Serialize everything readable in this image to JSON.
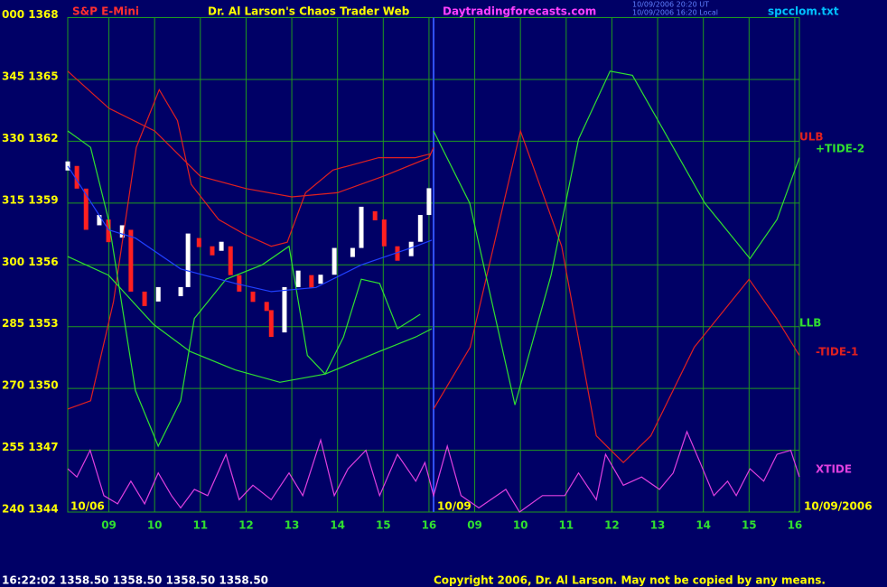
{
  "chart_data": {
    "type": "line",
    "title": "S&P E-Mini",
    "subtitle": "Dr. Al Larson's Chaos Trader Web",
    "website": "Daytradingforecasts.com",
    "timestamps": [
      "10/09/2006 20:20 UT",
      "10/09/2006 16:20 Local"
    ],
    "file": "spcclom.txt",
    "status": "16:22:02  1358.50 1358.50 1358.50 1358.50",
    "copyright": "Copyright 2006, Dr. Al Larson. May not be copied by any means.",
    "date_labels": [
      "10/06",
      "10/09",
      "10/09/2006"
    ],
    "grid": true,
    "ylim": [
      1344,
      1368
    ],
    "yticks": [
      {
        "value": 1368,
        "label": "000 1368"
      },
      {
        "value": 1365,
        "label": "345 1365"
      },
      {
        "value": 1362,
        "label": "330 1362"
      },
      {
        "value": 1359,
        "label": "315 1359"
      },
      {
        "value": 1356,
        "label": "300 1356"
      },
      {
        "value": 1353,
        "label": "285 1353"
      },
      {
        "value": 1350,
        "label": "270 1350"
      },
      {
        "value": 1347,
        "label": "255 1347"
      },
      {
        "value": 1344,
        "label": "240 1344"
      }
    ],
    "xlim": [
      0.1,
      16.1
    ],
    "xticks": [
      {
        "value": 1,
        "label": "09"
      },
      {
        "value": 2,
        "label": "10"
      },
      {
        "value": 3,
        "label": "11"
      },
      {
        "value": 4,
        "label": "12"
      },
      {
        "value": 5,
        "label": "13"
      },
      {
        "value": 6,
        "label": "14"
      },
      {
        "value": 7,
        "label": "15"
      },
      {
        "value": 8,
        "label": "16"
      },
      {
        "value": 9,
        "label": "09"
      },
      {
        "value": 10,
        "label": "10"
      },
      {
        "value": 11,
        "label": "11"
      },
      {
        "value": 12,
        "label": "12"
      },
      {
        "value": 13,
        "label": "13"
      },
      {
        "value": 14,
        "label": "14"
      },
      {
        "value": 15,
        "label": "15"
      },
      {
        "value": 16,
        "label": "16"
      }
    ],
    "session_break": 8.1,
    "series": [
      {
        "style": "bars",
        "color": "#ffffff",
        "down_color": "#ff2020",
        "x": [
          0.1,
          0.3,
          0.5,
          0.79,
          0.99,
          1.29,
          1.48,
          1.78,
          2.08,
          2.57,
          2.73,
          2.97,
          3.26,
          3.46,
          3.66,
          3.85,
          4.15,
          4.45,
          4.55,
          4.84,
          5.14,
          5.43,
          5.63,
          5.93,
          6.33,
          6.52,
          6.82,
          7.02,
          7.31,
          7.61,
          7.81,
          8.0
        ],
        "values": [
          1360.8,
          1359.7,
          1357.7,
          1358.2,
          1357.1,
          1357.7,
          1354.7,
          1354.0,
          1354.7,
          1354.7,
          1357.3,
          1356.9,
          1356.6,
          1356.9,
          1355.5,
          1354.7,
          1354.2,
          1353.8,
          1352.5,
          1354.7,
          1355.5,
          1354.9,
          1355.3,
          1356.6,
          1356.6,
          1358.6,
          1358.2,
          1356.9,
          1356.2,
          1356.9,
          1358.2,
          1359.5
        ]
      },
      {
        "name": "ULB",
        "color": "#e02020",
        "x": [
          0.1,
          1,
          2,
          3,
          4,
          5,
          6,
          7,
          8,
          8.1
        ],
        "values": [
          1365.4,
          1363.6,
          1362.5,
          1360.3,
          1359.7,
          1359.3,
          1359.5,
          1360.3,
          1361.2,
          1361.7
        ]
      },
      {
        "name": "-TIDE-1",
        "color": "#e02020",
        "x": [
          0.1,
          0.6,
          1.1,
          1.6,
          2.1,
          2.5,
          2.8,
          3.4,
          3.95,
          4.55,
          4.9,
          5.3,
          5.9,
          6.9,
          7.7,
          8.05,
          8.08,
          8.1,
          8.9,
          10.0,
          10.9,
          11.66,
          12.25,
          12.85,
          13.8,
          15.0,
          15.6,
          16.1
        ],
        "values": [
          1349.0,
          1349.4,
          1354.2,
          1361.7,
          1364.5,
          1363.0,
          1359.9,
          1358.2,
          1357.5,
          1356.9,
          1357.1,
          1359.5,
          1360.6,
          1361.2,
          1361.2,
          1361.4,
          null,
          1349.0,
          1352.0,
          1362.5,
          1356.9,
          1347.7,
          1346.4,
          1347.7,
          1352.0,
          1355.3,
          1353.4,
          1351.6
        ]
      },
      {
        "name": "+TIDE-2",
        "color": "#30e030",
        "x": [
          0.1,
          0.6,
          0.99,
          1.58,
          2.08,
          2.57,
          2.87,
          3.56,
          4.35,
          4.94,
          5.34,
          5.73,
          6.13,
          6.52,
          6.92,
          7.31,
          7.81,
          7.95,
          8.1,
          8.89,
          9.88,
          10.67,
          11.27,
          11.96,
          12.45,
          13.24,
          14.03,
          15.02,
          15.61,
          16.1
        ],
        "values": [
          1362.5,
          1361.7,
          1358.2,
          1349.9,
          1347.2,
          1349.4,
          1353.4,
          1355.3,
          1356.0,
          1356.9,
          1351.6,
          1350.7,
          1352.5,
          1355.3,
          1355.1,
          1352.9,
          1353.6,
          null,
          1362.5,
          1359.0,
          1349.2,
          1355.5,
          1362.1,
          1365.4,
          1365.2,
          1362.1,
          1359.0,
          1356.3,
          1358.2,
          1361.2
        ]
      },
      {
        "name": "LLB",
        "color": "#30e030",
        "x": [
          0.1,
          0.99,
          1.98,
          2.77,
          3.76,
          4.74,
          5.73,
          6.92,
          7.71,
          8.06
        ],
        "values": [
          1356.4,
          1355.5,
          1353.1,
          1351.8,
          1350.9,
          1350.3,
          1350.7,
          1351.8,
          1352.5,
          1352.9
        ]
      },
      {
        "color": "#2040ff",
        "x": [
          0.1,
          0.99,
          1.58,
          2.57,
          3.76,
          4.55,
          5.53,
          6.52,
          7.71,
          8.06
        ],
        "values": [
          1360.8,
          1357.7,
          1357.3,
          1355.8,
          1355.1,
          1354.7,
          1354.9,
          1356.0,
          1356.9,
          1357.2
        ]
      },
      {
        "name": "XTIDE",
        "color": "#e040e0",
        "x": [
          0.1,
          0.3,
          0.59,
          0.89,
          1.19,
          1.48,
          1.78,
          2.08,
          2.37,
          2.57,
          2.87,
          3.16,
          3.56,
          3.85,
          4.15,
          4.55,
          4.94,
          5.24,
          5.63,
          5.93,
          6.23,
          6.62,
          6.92,
          7.31,
          7.71,
          7.91,
          8.1,
          8.4,
          8.7,
          9.09,
          9.68,
          9.98,
          10.48,
          10.97,
          11.27,
          11.66,
          11.86,
          12.25,
          12.65,
          13.04,
          13.34,
          13.64,
          13.93,
          14.23,
          14.53,
          14.72,
          15.02,
          15.32,
          15.61,
          15.91,
          16.1
        ],
        "values": [
          1346.1,
          1345.7,
          1347.0,
          1344.8,
          1344.4,
          1345.5,
          1344.4,
          1345.9,
          1344.8,
          1344.2,
          1345.1,
          1344.8,
          1346.8,
          1344.6,
          1345.3,
          1344.6,
          1345.9,
          1344.8,
          1347.5,
          1344.8,
          1346.1,
          1347.0,
          1344.8,
          1346.8,
          1345.5,
          1346.4,
          1344.8,
          1347.2,
          1344.8,
          1344.2,
          1345.1,
          1344.0,
          1344.8,
          1344.8,
          1345.9,
          1344.6,
          1346.8,
          1345.3,
          1345.7,
          1345.1,
          1345.9,
          1347.9,
          1346.4,
          1344.8,
          1345.5,
          1344.8,
          1346.1,
          1345.5,
          1346.8,
          1347.0,
          1345.7
        ]
      }
    ]
  }
}
